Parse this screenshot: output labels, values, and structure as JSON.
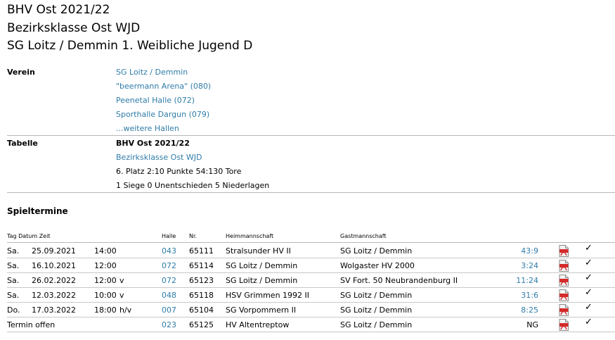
{
  "header": {
    "line1": "BHV Ost 2021/22",
    "line2": "Bezirksklasse Ost WJD",
    "line3": "SG Loitz / Demmin 1. Weibliche Jugend D"
  },
  "verein": {
    "label": "Verein",
    "club": "SG Loitz / Demmin",
    "halls": [
      "\"beermann Arena\" (080)",
      "Peenetal Halle (072)",
      "Sporthalle Dargun (079)"
    ],
    "more_halls": "...weitere Hallen"
  },
  "tabelle": {
    "label": "Tabelle",
    "season": "BHV Ost 2021/22",
    "league": "Bezirksklasse Ost WJD",
    "position": "6. Platz 2:10 Punkte 54:130 Tore",
    "record": "1 Siege 0 Unentschieden 5 Niederlagen"
  },
  "spieltermine": {
    "title": "Spieltermine",
    "columns": {
      "tag_datum_zeit": "Tag Datum Zeit",
      "halle": "Halle",
      "nr": "Nr.",
      "heim": "Heimmannschaft",
      "gast": "Gastmannschaft"
    },
    "games": [
      {
        "day": "Sa.",
        "date": "25.09.2021",
        "time": "14:00",
        "flag": "",
        "hall": "043",
        "nr": "65111",
        "home": "Stralsunder HV II",
        "guest": "SG Loitz / Demmin",
        "result": "43:9",
        "result_link": true,
        "check": "✓"
      },
      {
        "day": "Sa.",
        "date": "16.10.2021",
        "time": "12:00",
        "flag": "",
        "hall": "072",
        "nr": "65114",
        "home": "SG Loitz / Demmin",
        "guest": "Wolgaster HV 2000",
        "result": "3:24",
        "result_link": true,
        "check": "✓"
      },
      {
        "day": "Sa.",
        "date": "26.02.2022",
        "time": "12:00",
        "flag": "v",
        "hall": "072",
        "nr": "65123",
        "home": "SG Loitz / Demmin",
        "guest": "SV Fort. 50 Neubrandenburg II",
        "result": "11:24",
        "result_link": true,
        "check": "✓"
      },
      {
        "day": "Sa.",
        "date": "12.03.2022",
        "time": "10:00",
        "flag": "v",
        "hall": "048",
        "nr": "65118",
        "home": "HSV Grimmen 1992 II",
        "guest": "SG Loitz / Demmin",
        "result": "31:6",
        "result_link": true,
        "check": "✓"
      },
      {
        "day": "Do.",
        "date": "17.03.2022",
        "time": "18:00",
        "flag": "h/v",
        "hall": "007",
        "nr": "65104",
        "home": "SG Vorpommern II",
        "guest": "SG Loitz / Demmin",
        "result": "8:25",
        "result_link": true,
        "check": "✓"
      },
      {
        "day": "Termin offen",
        "date": "",
        "time": "",
        "flag": "",
        "hall": "023",
        "nr": "65125",
        "home": "HV Altentreptow",
        "guest": "SG Loitz / Demmin",
        "result": "NG",
        "result_link": false,
        "check": "✓"
      }
    ]
  },
  "icons": {
    "report": "pdf-file-icon",
    "status": "checkmark-icon"
  },
  "colors": {
    "link": "#2f7ca8",
    "pdf_red": "#d42a2a",
    "divider": "#b8b8b8"
  }
}
